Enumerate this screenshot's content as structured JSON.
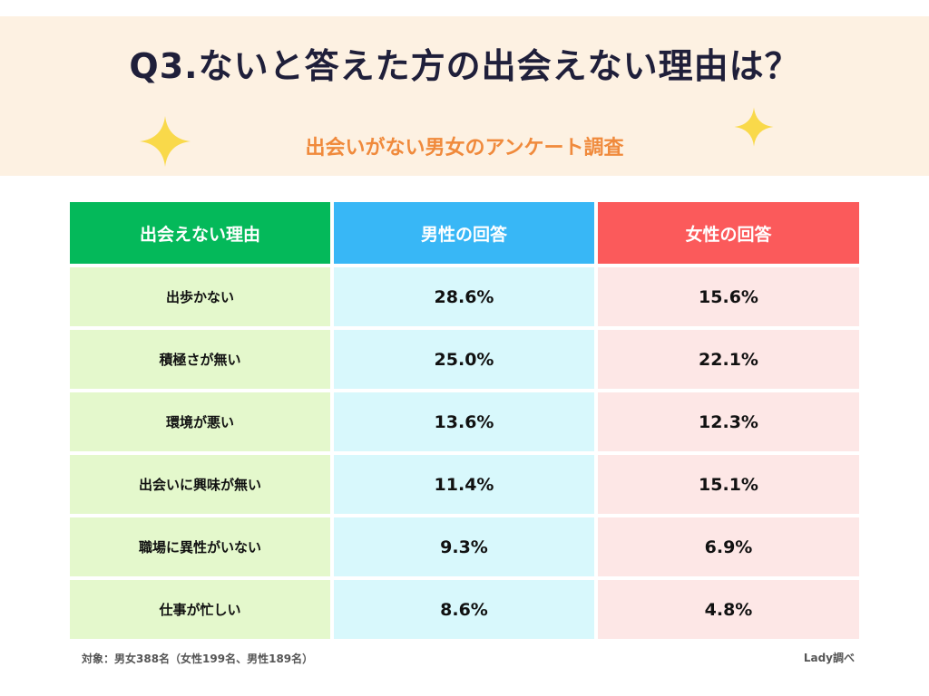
{
  "title": "Q3.ないと答えた方の出会えない理由は？",
  "subtitle": "出会いがない男女のアンケート調査",
  "chart_data": {
    "type": "table",
    "columns": [
      "出会えない理由",
      "男性の回答",
      "女性の回答"
    ],
    "rows": [
      {
        "reason": "出歩かない",
        "male": "28.6%",
        "female": "15.6%"
      },
      {
        "reason": "積極さが無い",
        "male": "25.0%",
        "female": "22.1%"
      },
      {
        "reason": "環境が悪い",
        "male": "13.6%",
        "female": "12.3%"
      },
      {
        "reason": "出会いに興味が無い",
        "male": "11.4%",
        "female": "15.1%"
      },
      {
        "reason": "職場に異性がいない",
        "male": "9.3%",
        "female": "6.9%"
      },
      {
        "reason": "仕事が忙しい",
        "male": "8.6%",
        "female": "4.8%"
      }
    ]
  },
  "footnote": "対象：男女388名（女性199名、男性189名）",
  "credit": "Lady調べ",
  "colors": {
    "header_bg": "#fdf1e2",
    "title": "#1f1f3a",
    "subtitle": "#f08a3c",
    "sparkle": "#f9d94a",
    "reason_header": "#04b95a",
    "male_header": "#38b7f6",
    "female_header": "#fb5a5b",
    "reason_cell": "#e4f8cc",
    "male_cell": "#d8f8fc",
    "female_cell": "#fde7e6"
  },
  "icons": [
    "sparkle-icon",
    "sparkle-icon"
  ]
}
